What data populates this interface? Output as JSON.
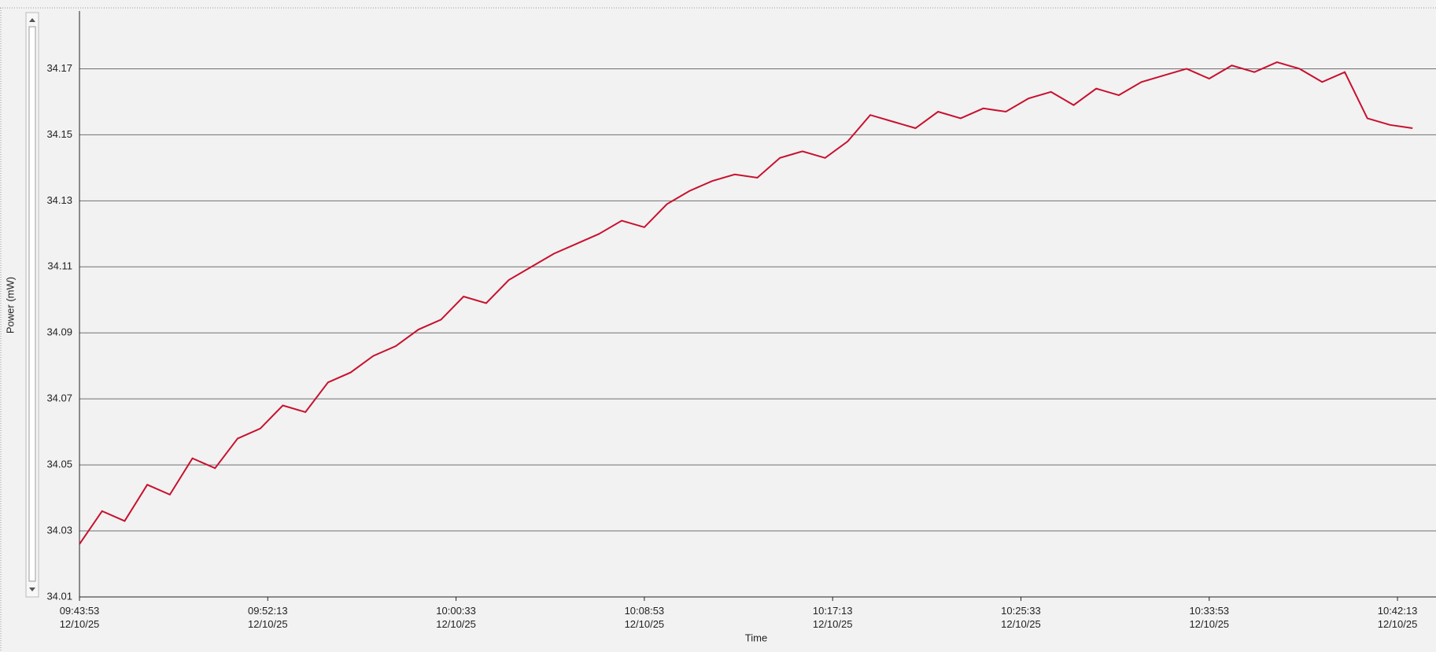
{
  "chart_data": {
    "type": "line",
    "y_label": "Power (mW)",
    "x_label": "Time",
    "x": [
      "09:43:53",
      "09:44:53",
      "09:45:53",
      "09:46:53",
      "09:47:53",
      "09:48:53",
      "09:49:53",
      "09:50:53",
      "09:51:53",
      "09:52:53",
      "09:53:53",
      "09:54:53",
      "09:55:53",
      "09:56:53",
      "09:57:53",
      "09:58:53",
      "09:59:53",
      "10:00:53",
      "10:01:53",
      "10:02:53",
      "10:03:53",
      "10:04:53",
      "10:05:53",
      "10:06:53",
      "10:07:53",
      "10:08:53",
      "10:09:53",
      "10:10:53",
      "10:11:53",
      "10:12:53",
      "10:13:53",
      "10:14:53",
      "10:15:53",
      "10:16:53",
      "10:17:53",
      "10:18:53",
      "10:19:53",
      "10:20:53",
      "10:21:53",
      "10:22:53",
      "10:23:53",
      "10:24:53",
      "10:25:53",
      "10:26:53",
      "10:27:53",
      "10:28:53",
      "10:29:53",
      "10:30:53",
      "10:31:53",
      "10:32:53",
      "10:33:53",
      "10:34:53",
      "10:35:53",
      "10:36:53",
      "10:37:53",
      "10:38:53",
      "10:39:53",
      "10:40:53",
      "10:41:53",
      "10:42:53"
    ],
    "series": [
      {
        "name": "Power",
        "color": "#c8102e",
        "values": [
          34.026,
          34.036,
          34.033,
          34.044,
          34.041,
          34.052,
          34.049,
          34.058,
          34.061,
          34.068,
          34.066,
          34.075,
          34.078,
          34.083,
          34.086,
          34.091,
          34.094,
          34.101,
          34.099,
          34.106,
          34.11,
          34.114,
          34.117,
          34.12,
          34.124,
          34.122,
          34.129,
          34.133,
          34.136,
          34.138,
          34.137,
          34.143,
          34.145,
          34.143,
          34.148,
          34.156,
          34.154,
          34.152,
          34.157,
          34.155,
          34.158,
          34.157,
          34.161,
          34.163,
          34.159,
          34.164,
          34.162,
          34.166,
          34.168,
          34.17,
          34.167,
          34.171,
          34.169,
          34.172,
          34.17,
          34.166,
          34.169,
          34.155,
          34.153,
          34.152
        ]
      }
    ],
    "xlim": [
      "09:43:53",
      "10:43:49"
    ],
    "xticks": [
      {
        "value": "09:43:53",
        "label": "09:43:53\n12/10/25"
      },
      {
        "value": "09:52:13",
        "label": "09:52:13\n12/10/25"
      },
      {
        "value": "10:00:33",
        "label": "10:00:33\n12/10/25"
      },
      {
        "value": "10:08:53",
        "label": "10:08:53\n12/10/25"
      },
      {
        "value": "10:17:13",
        "label": "10:17:13\n12/10/25"
      },
      {
        "value": "10:25:33",
        "label": "10:25:33\n12/10/25"
      },
      {
        "value": "10:33:53",
        "label": "10:33:53\n12/10/25"
      },
      {
        "value": "10:42:13",
        "label": "10:42:13\n12/10/25"
      }
    ],
    "ylim": [
      34.01,
      34.1875
    ],
    "yticks": [
      34.01,
      34.03,
      34.05,
      34.07,
      34.09,
      34.11,
      34.13,
      34.15,
      34.17
    ],
    "grid": true
  }
}
